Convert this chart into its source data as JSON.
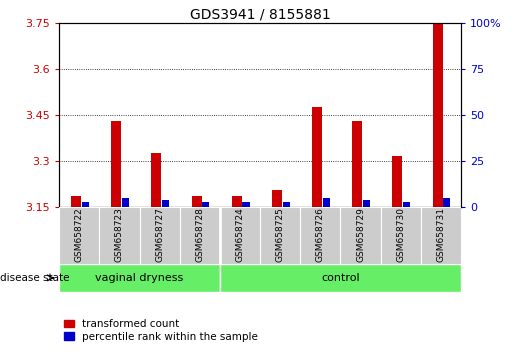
{
  "title": "GDS3941 / 8155881",
  "samples": [
    "GSM658722",
    "GSM658723",
    "GSM658727",
    "GSM658728",
    "GSM658724",
    "GSM658725",
    "GSM658726",
    "GSM658729",
    "GSM658730",
    "GSM658731"
  ],
  "red_values": [
    3.185,
    3.43,
    3.325,
    3.185,
    3.185,
    3.205,
    3.475,
    3.43,
    3.315,
    3.75
  ],
  "blue_values": [
    3,
    5,
    4,
    3,
    3,
    3,
    5,
    4,
    3,
    5
  ],
  "ylim_left": [
    3.15,
    3.75
  ],
  "ylim_right": [
    0,
    100
  ],
  "yticks_left": [
    3.15,
    3.3,
    3.45,
    3.6,
    3.75
  ],
  "yticks_right": [
    0,
    25,
    50,
    75,
    100
  ],
  "grid_lines": [
    3.3,
    3.45,
    3.6
  ],
  "group1_label": "vaginal dryness",
  "group2_label": "control",
  "group1_count": 4,
  "group2_count": 6,
  "red_color": "#cc0000",
  "blue_color": "#0000cc",
  "group_bg_color": "#66ee66",
  "sample_bg_color": "#cccccc",
  "legend_red_label": "transformed count",
  "legend_blue_label": "percentile rank within the sample",
  "disease_state_label": "disease state",
  "title_fontsize": 10,
  "tick_fontsize": 8,
  "sample_fontsize": 6.5,
  "group_fontsize": 8
}
